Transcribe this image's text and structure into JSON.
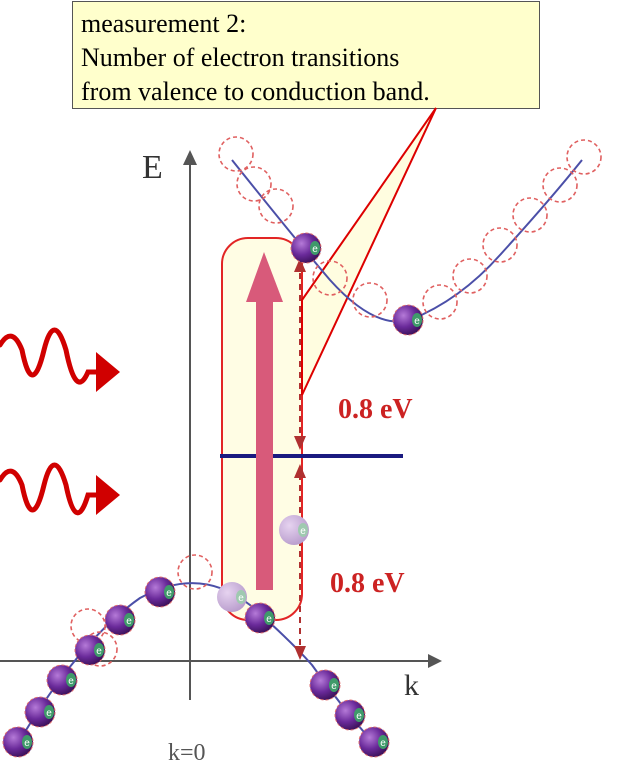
{
  "callout": {
    "line1": "measurement 2:",
    "line2": "Number of electron transitions",
    "line3": "from valence to conduction band."
  },
  "axes": {
    "energy_label": "E",
    "momentum_label": "k",
    "origin_label": "k=0"
  },
  "gaps": {
    "upper": "0.8 eV",
    "lower": "0.8 eV"
  },
  "electron_labels": {
    "marker": "e"
  },
  "colors": {
    "band": "#4b4fa8",
    "electron": "#6a2a9a",
    "electron_tag": "#3f9a6a",
    "hole_outline": "#e06060",
    "wave": "#d00000",
    "arrow": "#d85a7a",
    "gap_text": "#cc2222",
    "level_line": "#1a1a80",
    "highlight_fill": "#fffde0",
    "highlight_stroke": "#dd0000"
  }
}
